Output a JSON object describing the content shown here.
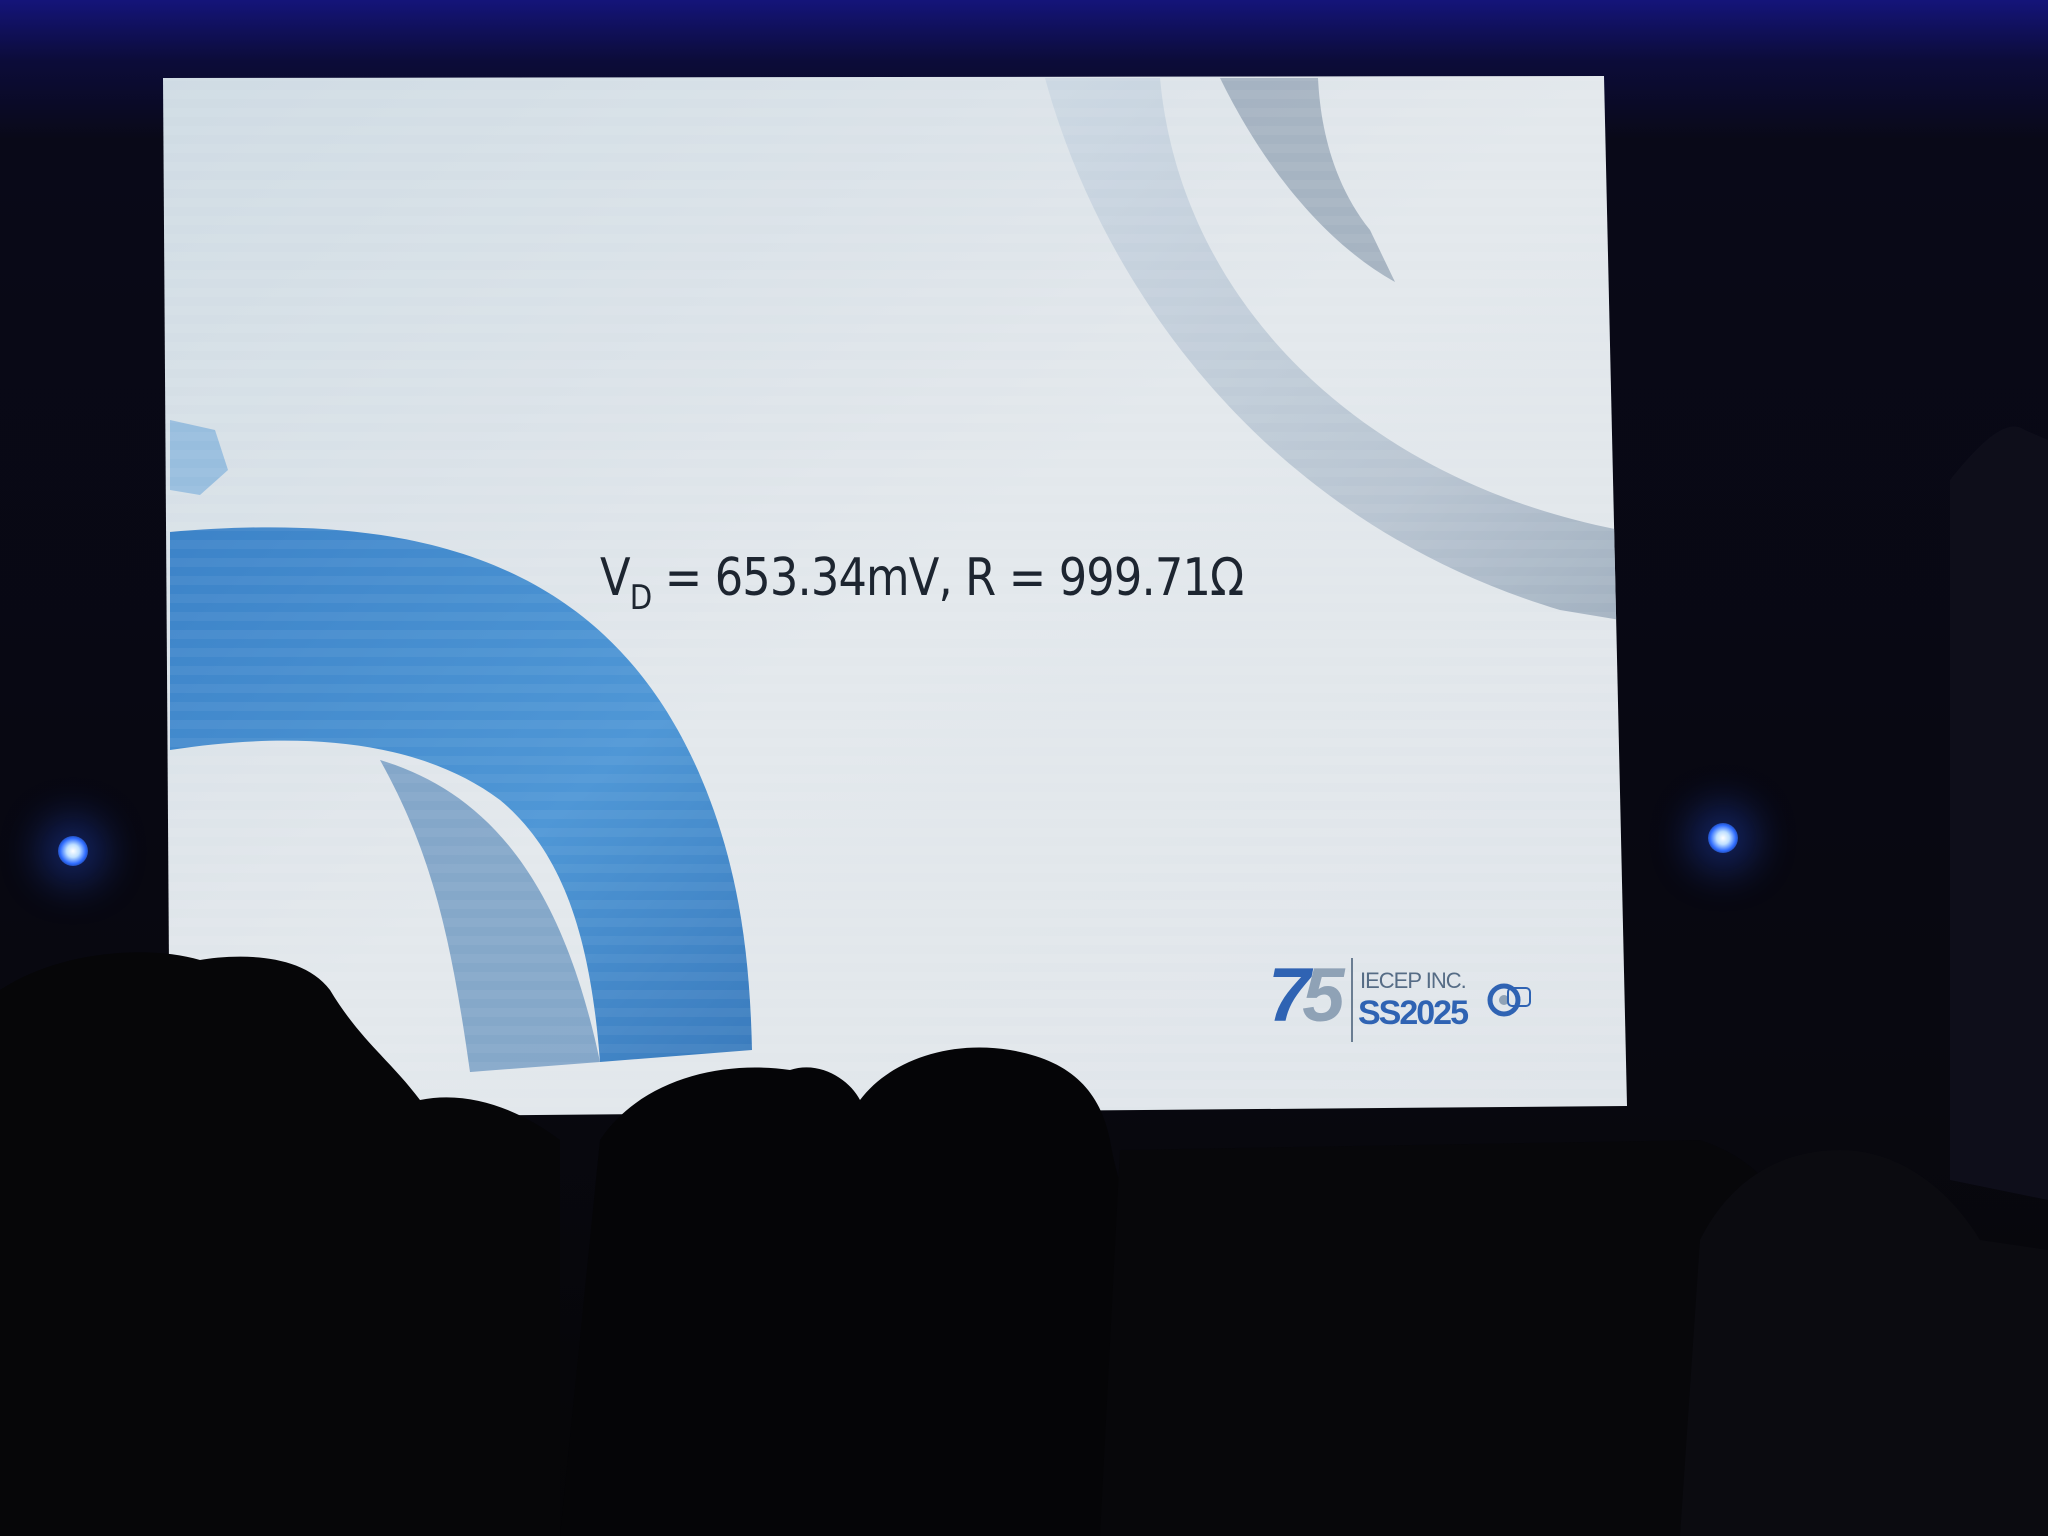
{
  "slide": {
    "equation": {
      "v_symbol": "V",
      "v_subscript": "D",
      "rest": " = 653.34mV, R = 999.71Ω"
    },
    "logo": {
      "number_first": "7",
      "number_second": "5",
      "org": "IECEP INC.",
      "event": "SS2025"
    }
  },
  "colors": {
    "slide_background": "#dde3e8",
    "arc_blue": "#4a8fcf",
    "arc_grey": "#b9c4cf",
    "text": "#1d2530",
    "stage_light": "#2f6cff"
  },
  "icons": [
    "stage-light-icon",
    "event-seal-icon"
  ]
}
